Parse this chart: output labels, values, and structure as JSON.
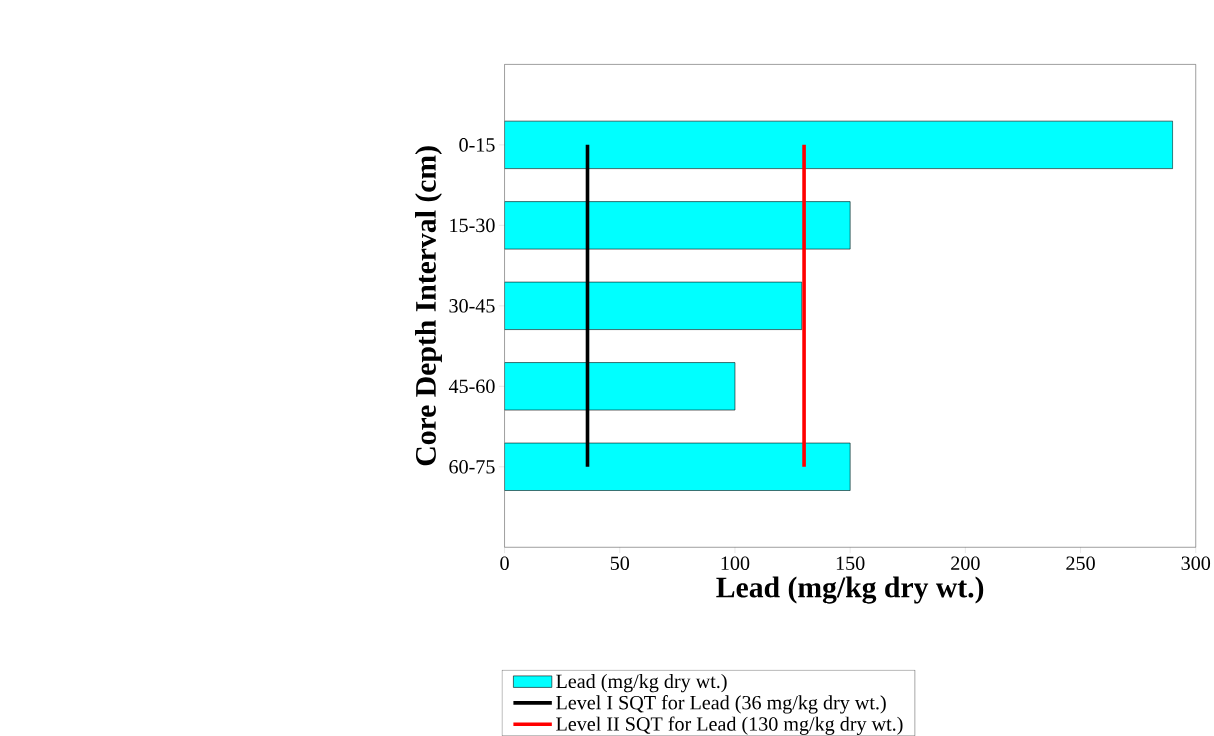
{
  "chart_data": {
    "type": "bar",
    "orientation": "horizontal",
    "categories": [
      "0-15",
      "15-30",
      "30-45",
      "45-60",
      "60-75"
    ],
    "series": [
      {
        "name": "Lead (mg/kg dry wt.)",
        "color": "#00ffff",
        "values": [
          290,
          150,
          129,
          100,
          150
        ]
      }
    ],
    "xlim": [
      0,
      300
    ],
    "xticks": [
      0,
      50,
      100,
      150,
      200,
      250,
      300
    ],
    "xlabel": "Lead (mg/kg dry wt.)",
    "ylabel": "Core Depth Interval (cm)",
    "ref_lines": [
      {
        "axis": "x",
        "value": 36,
        "label": "Level I SQT for Lead (36 mg/kg dry wt.)",
        "color": "#000000"
      },
      {
        "axis": "x",
        "value": 130,
        "label": "Level II SQT for Lead (130 mg/kg dry wt.)",
        "color": "#ff0000"
      }
    ],
    "legend": "bottom",
    "grid": false
  }
}
